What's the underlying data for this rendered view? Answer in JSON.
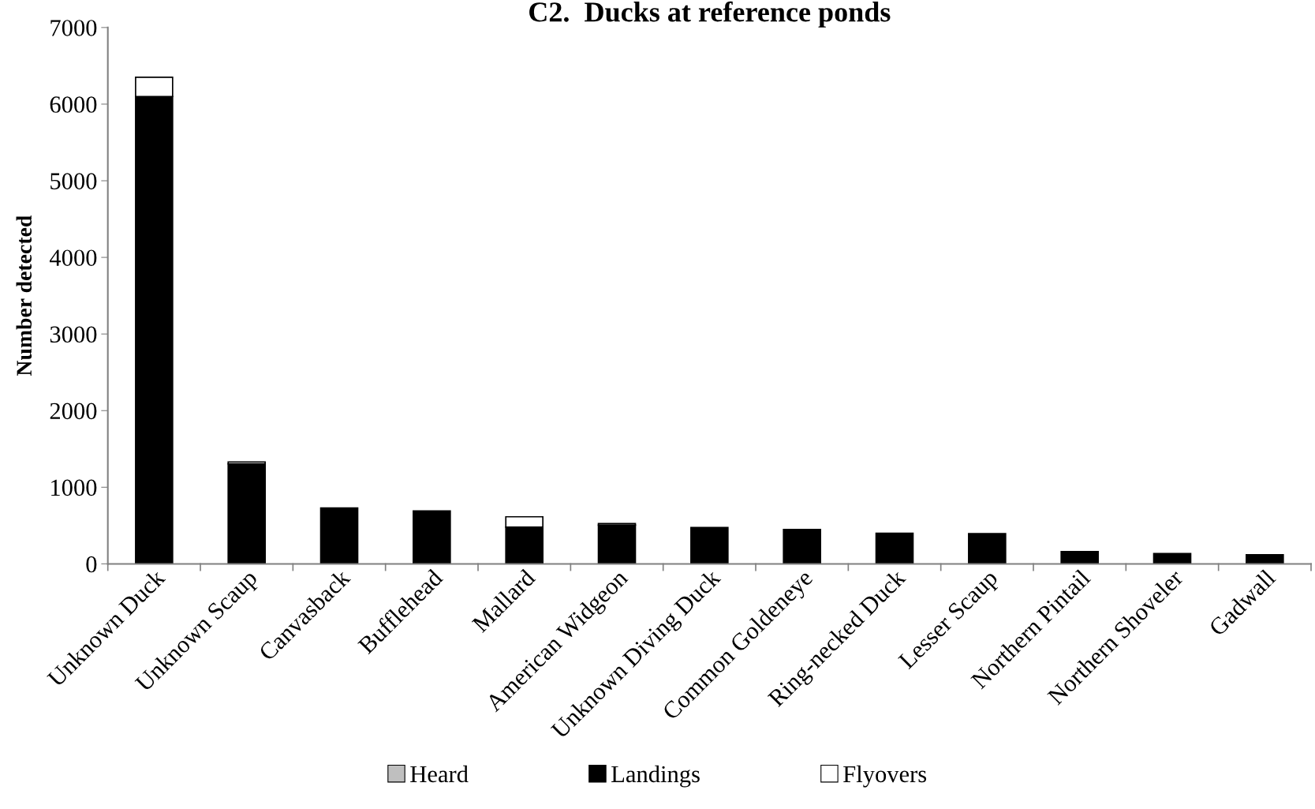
{
  "chart_data": {
    "type": "bar",
    "title": "C2.  Ducks at reference ponds",
    "ylabel": "Number detected",
    "categories": [
      "Unknown Duck",
      "Unknown Scaup",
      "Canvasback",
      "Bufflehead",
      "Mallard",
      "American Widgeon",
      "Unknown Diving Duck",
      "Common Goldeneye",
      "Ring-necked Duck",
      "Lesser Scaup",
      "Northern Pintail",
      "Northern Shoveler",
      "Gadwall"
    ],
    "stacked": true,
    "series": [
      {
        "name": "Heard",
        "color": "#bfbfbf",
        "values": [
          0,
          0,
          0,
          0,
          0,
          0,
          0,
          0,
          0,
          0,
          0,
          0,
          0
        ]
      },
      {
        "name": "Landings",
        "color": "#000000",
        "values": [
          6100,
          1305,
          730,
          690,
          480,
          505,
          475,
          450,
          400,
          395,
          160,
          135,
          120
        ]
      },
      {
        "name": "Flyovers",
        "color": "#ffffff",
        "values": [
          250,
          25,
          0,
          0,
          135,
          20,
          0,
          0,
          0,
          0,
          0,
          0,
          0
        ]
      }
    ],
    "ylim": [
      0,
      7000
    ],
    "yticks": [
      0,
      1000,
      2000,
      3000,
      4000,
      5000,
      6000,
      7000
    ],
    "grid": false,
    "legend": "bottom"
  }
}
